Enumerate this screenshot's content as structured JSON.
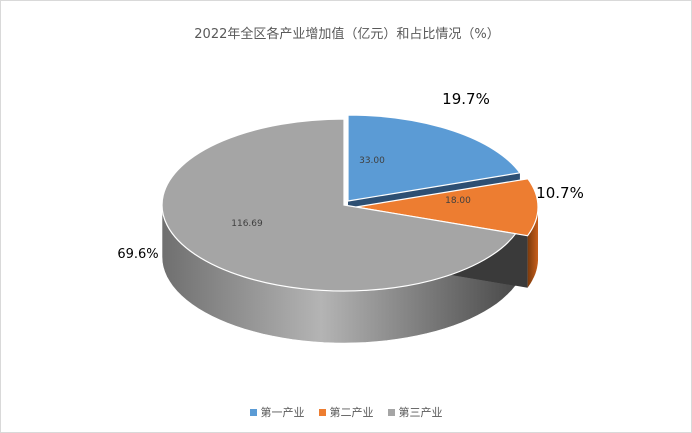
{
  "chart_data": {
    "type": "pie",
    "title": "2022年全区各产业增加值（亿元）和占比情况（%）",
    "categories": [
      "第一产业",
      "第二产业",
      "第三产业"
    ],
    "values": [
      33.0,
      18.0,
      116.69
    ],
    "value_labels": [
      "33.00",
      "18.00",
      "116.69"
    ],
    "percent_labels": [
      "19.7%",
      "10.7%",
      "69.6%"
    ],
    "colors": [
      "#5B9BD5",
      "#ED7D31",
      "#A5A5A5"
    ],
    "style": "3d-exploded",
    "legend_position": "bottom"
  }
}
